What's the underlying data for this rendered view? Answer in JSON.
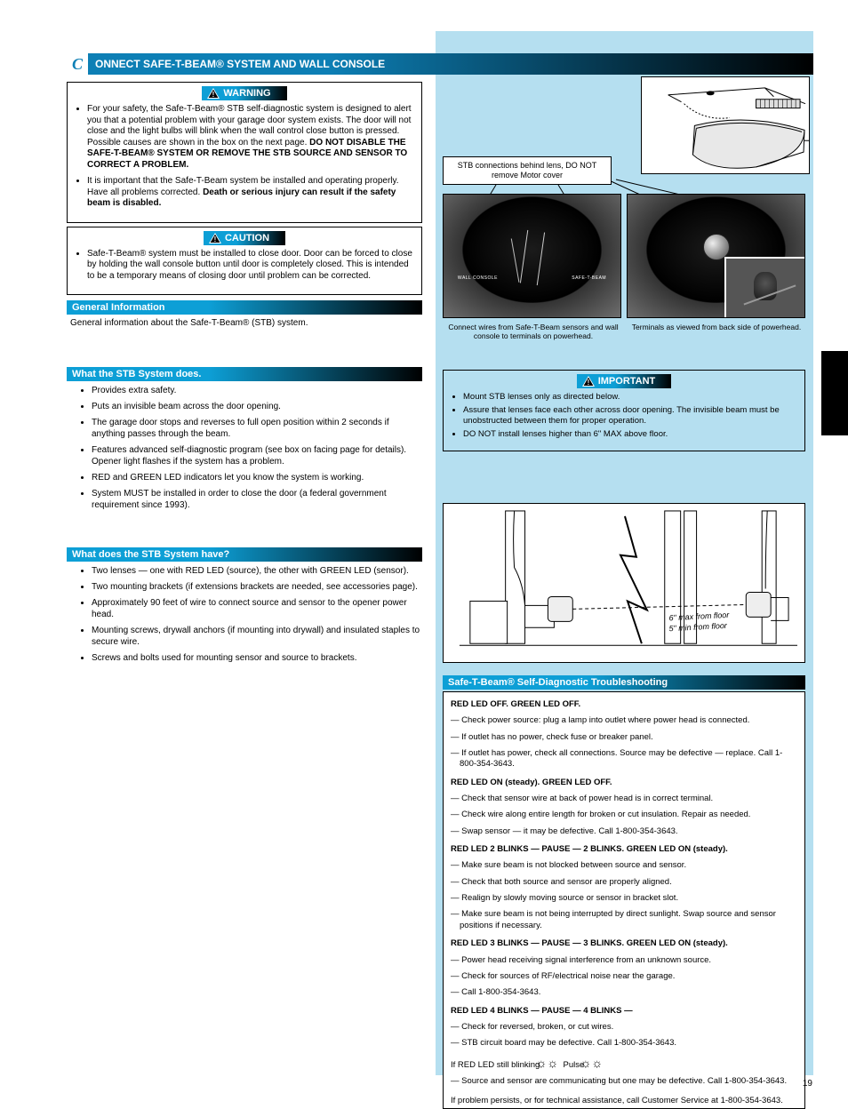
{
  "header": {
    "letter": "C",
    "title": "ONNECT SAFE-T-BEAM® SYSTEM AND WALL CONSOLE"
  },
  "left": {
    "warning_label": "WARNING",
    "caution_label": "CAUTION",
    "warning_items": [
      "For your safety, the Safe-T-Beam® STB self-diagnostic system is designed to alert you that a potential problem with your garage door system exists. The door will not close and the light bulbs will blink when the wall control close button is pressed. Possible causes are shown in the box on the next page. <span class='bold'>DO NOT DISABLE THE SAFE-T-BEAM® SYSTEM OR REMOVE THE STB SOURCE AND SENSOR TO CORRECT A PROBLEM.</span>",
      "It is important that the Safe-T-Beam system be installed and operating properly. Have all problems corrected. <span class='bold'>Death or serious injury can result if the safety beam is disabled.</span>"
    ],
    "caution_items": [
      "Safe-T-Beam® system must be installed to close door. Door can be forced to close by holding the wall console button until door is completely closed. This is intended to be a temporary means of closing door until problem can be corrected."
    ],
    "bar_general": "General Information",
    "general_text": "General information about the Safe-T-Beam® (STB) system.",
    "bar_what_does": "What the STB System does.",
    "what_does_items": [
      "Provides extra safety.",
      "Puts an invisible beam across the door opening.",
      "The garage door stops and reverses to full open position within 2 seconds if anything passes through the beam.",
      "Features advanced self-diagnostic program (see box on facing page for details). Opener light flashes if the system has a problem.",
      "RED and GREEN LED indicators let you know the system is working.",
      "System MUST be installed in order to close the door (a federal government requirement since 1993)."
    ],
    "bar_what_have": "What does the STB System have?",
    "what_have_items": [
      "Two lenses — one with RED LED (source), the other with GREEN LED (sensor).",
      "Two mounting brackets (if extensions brackets are needed, see accessories page).",
      "Approximately 90 feet of wire to connect source and sensor to the opener power head.",
      "Mounting screws, drywall anchors (if mounting into drywall) and insulated staples to secure wire.",
      "Screws and bolts used for mounting sensor and source to brackets."
    ]
  },
  "right": {
    "stb_label": "STB connections behind lens, DO NOT remove Motor cover",
    "fb1": "Connect wires from Safe-T-Beam sensors and wall console to terminals on powerhead.",
    "fb2": "Terminals as viewed from back side of powerhead.",
    "important_label": "IMPORTANT",
    "important_items": [
      "Mount STB lenses only as directed below.",
      "Assure that lenses face each other across door opening. The invisible beam must be unobstructed between them for proper operation.",
      "DO NOT install lenses higher than 6\" MAX above floor."
    ],
    "beam_label1": "6\" max from floor",
    "beam_label2": "5\" min from floor",
    "bar_self_diag": "Safe-T-Beam® Self-Diagnostic Troubleshooting",
    "diag_p1": "<span class='bold'>RED LED OFF. GREEN LED OFF.</span>",
    "diag_b1a": "— Check power source: plug a lamp into outlet where power head is connected.",
    "diag_b1b": "— If outlet has no power, check fuse or breaker panel.",
    "diag_b1c": "— If outlet has power, check all connections. Source may be defective — replace. Call 1-800-354-3643.",
    "diag_p2": "<span class='bold'>RED LED ON (steady). GREEN LED OFF.</span>",
    "diag_b2a": "— Check that sensor wire at back of power head is in correct terminal.",
    "diag_b2b": "— Check wire along entire length for broken or cut insulation. Repair as needed.",
    "diag_b2c": "— Swap sensor — it may be defective. Call 1-800-354-3643.",
    "diag_p3": "<span class='bold'>RED LED 2 BLINKS — PAUSE — 2 BLINKS. GREEN LED ON (steady).</span>",
    "diag_b3a": "— Make sure beam is not blocked between source and sensor.",
    "diag_b3b": "— Check that both source and sensor are properly aligned.",
    "diag_b3c": "— Realign by slowly moving source or sensor in bracket slot.",
    "diag_b3d": "— Make sure beam is not being interrupted by direct sunlight. Swap source and sensor positions if necessary.",
    "diag_p4": "<span class='bold'>RED LED 3 BLINKS — PAUSE — 3 BLINKS. GREEN LED ON (steady).</span>",
    "diag_b4a": "— Power head receiving signal interference from an unknown source.",
    "diag_b4b": "— Check for sources of RF/electrical noise near the garage.",
    "diag_b4c": "— Call 1-800-354-3643.",
    "diag_p5": "<span class='bold'>RED LED 4 BLINKS — PAUSE — 4 BLINKS —</span>",
    "diag_b5a": "— Check for reversed, broken, or cut wires.",
    "diag_b5b": "— STB circuit board may be defective. Call 1-800-354-3643.",
    "gears_note": "If RED LED still blinking &nbsp;<span class='gear'>☼☼</span>&nbsp; Pulse &nbsp;<span class='gear'>☼☼</span>",
    "gears_note_sub": "— Source and sensor are communicating but one may be defective. Call 1-800-354-3643.",
    "diag_foot": "If problem persists, or for technical assistance, call Customer Service at 1-800-354-3643."
  },
  "page_num": "19"
}
